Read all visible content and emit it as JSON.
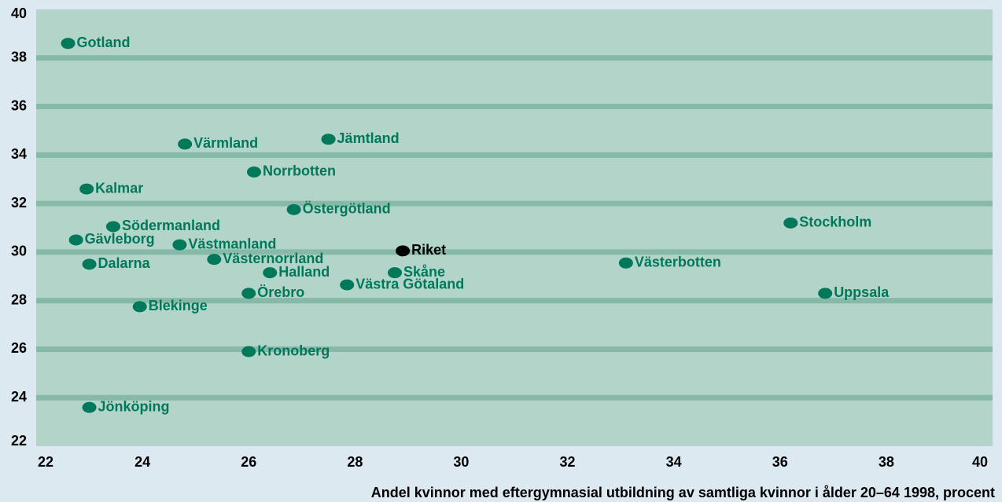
{
  "chart_data": {
    "type": "scatter",
    "xlabel": "Andel kvinnor med eftergymnasial utbildning av samtliga kvinnor i ålder 20–64 1998, procent",
    "labels": [
      "Gotland",
      "Värmland",
      "Jämtland",
      "Norrbotten",
      "Kalmar",
      "Östergötland",
      "Södermanland",
      "Gävleborg",
      "Västmanland",
      "Västernorrland",
      "Dalarna",
      "Halland",
      "Skåne",
      "Riket",
      "Västra Götaland",
      "Örebro",
      "Blekinge",
      "Kronoberg",
      "Jönköping",
      "Stockholm",
      "Västerbotten",
      "Uppsala"
    ],
    "x": [
      22.6,
      24.8,
      27.5,
      26.1,
      22.95,
      26.85,
      23.45,
      22.75,
      24.7,
      25.35,
      23.0,
      26.4,
      28.75,
      28.9,
      27.85,
      26.0,
      23.95,
      26.0,
      23.0,
      36.2,
      33.1,
      36.85
    ],
    "values": [
      38.6,
      34.45,
      34.65,
      33.3,
      32.6,
      31.75,
      31.05,
      30.5,
      30.3,
      29.7,
      29.5,
      29.15,
      29.15,
      30.05,
      28.65,
      28.3,
      27.75,
      25.9,
      23.6,
      31.2,
      29.55,
      28.3
    ],
    "colors": [
      "#00785a",
      "#00785a",
      "#00785a",
      "#00785a",
      "#00785a",
      "#00785a",
      "#00785a",
      "#00785a",
      "#00785a",
      "#00785a",
      "#00785a",
      "#00785a",
      "#00785a",
      "#000000",
      "#00785a",
      "#00785a",
      "#00785a",
      "#00785a",
      "#00785a",
      "#00785a",
      "#00785a",
      "#00785a"
    ],
    "xlim": [
      22,
      40
    ],
    "ylim": [
      22,
      40
    ],
    "xticks": [
      22,
      24,
      26,
      28,
      30,
      32,
      34,
      36,
      38,
      40
    ],
    "yticks": [
      22,
      24,
      26,
      28,
      30,
      32,
      34,
      36,
      38,
      40
    ],
    "grid": true
  }
}
